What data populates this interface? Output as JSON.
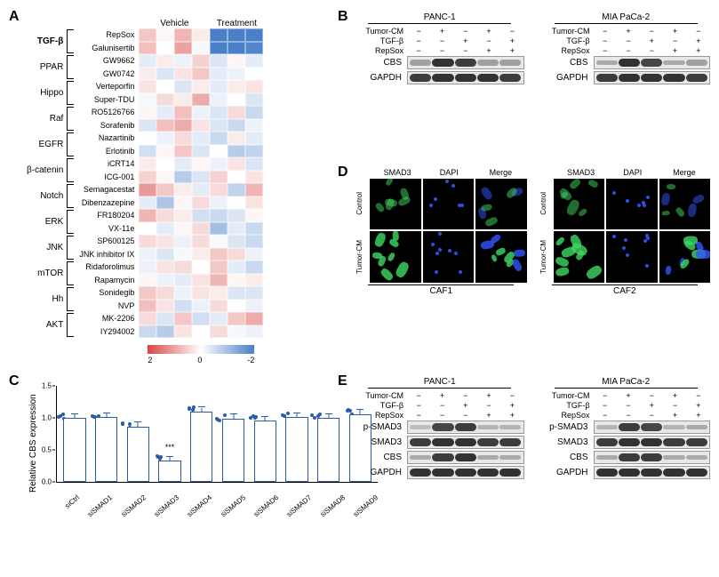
{
  "panelA": {
    "label": "A",
    "col_groups": [
      "Vehicle",
      "Treatment"
    ],
    "vehicle_cols": 4,
    "treatment_cols": 3,
    "pathways": [
      {
        "name": "TGF-β",
        "bold": true,
        "drugs": [
          "RepSox",
          "Galunisertib"
        ]
      },
      {
        "name": "PPAR",
        "bold": false,
        "drugs": [
          "GW9662",
          "GW0742"
        ]
      },
      {
        "name": "Hippo",
        "bold": false,
        "drugs": [
          "Verteporfin",
          "Super-TDU"
        ]
      },
      {
        "name": "Raf",
        "bold": false,
        "drugs": [
          "RO5126766",
          "Sorafenib"
        ]
      },
      {
        "name": "EGFR",
        "bold": false,
        "drugs": [
          "Nazartinib",
          "Erlotinib"
        ]
      },
      {
        "name": "β-catenin",
        "bold": false,
        "drugs": [
          "iCRT14",
          "ICG-001"
        ]
      },
      {
        "name": "Notch",
        "bold": false,
        "drugs": [
          "Semagacestat",
          "Dibenzazepine"
        ]
      },
      {
        "name": "ERK",
        "bold": false,
        "drugs": [
          "FR180204",
          "VX-11e"
        ]
      },
      {
        "name": "JNK",
        "bold": false,
        "drugs": [
          "SP600125",
          "JNK inhibitor IX"
        ]
      },
      {
        "name": "mTOR",
        "bold": false,
        "drugs": [
          "Ridaforolimus",
          "Rapamycin"
        ]
      },
      {
        "name": "Hh",
        "bold": false,
        "drugs": [
          "Sonidegib",
          "NVP"
        ]
      },
      {
        "name": "AKT",
        "bold": false,
        "drugs": [
          "MK-2206",
          "IY294002"
        ]
      }
    ],
    "heat_values": [
      [
        0.6,
        0.1,
        0.8,
        0.2,
        -2.4,
        -2.6,
        -2.0
      ],
      [
        0.7,
        0.0,
        1.0,
        -0.1,
        -2.3,
        -2.5,
        -1.9
      ],
      [
        -0.3,
        0.2,
        -0.2,
        0.5,
        -0.4,
        0.1,
        -0.3
      ],
      [
        0.2,
        -0.4,
        0.3,
        0.6,
        -0.3,
        -0.2,
        0.0
      ],
      [
        0.3,
        0.0,
        -0.4,
        0.2,
        -0.3,
        0.2,
        0.3
      ],
      [
        -0.1,
        0.4,
        0.2,
        0.9,
        -0.2,
        0.0,
        -0.4
      ],
      [
        0.1,
        -0.3,
        0.7,
        -0.2,
        -0.4,
        0.4,
        -0.6
      ],
      [
        -0.4,
        0.7,
        0.9,
        0.3,
        -0.4,
        -0.6,
        -0.2
      ],
      [
        0.0,
        -0.2,
        0.4,
        -0.3,
        -0.6,
        0.2,
        -0.3
      ],
      [
        -0.5,
        0.1,
        0.6,
        -0.4,
        0.0,
        -0.8,
        -0.7
      ],
      [
        0.2,
        0.0,
        -0.3,
        0.1,
        -0.2,
        0.3,
        -0.4
      ],
      [
        0.5,
        0.1,
        -0.8,
        -0.4,
        0.5,
        0.0,
        0.3
      ],
      [
        1.1,
        0.6,
        0.2,
        -0.3,
        0.4,
        -0.7,
        0.8
      ],
      [
        -0.3,
        -0.9,
        0.1,
        0.4,
        -0.2,
        0.0,
        0.3
      ],
      [
        0.8,
        0.4,
        0.2,
        -0.5,
        -0.6,
        -0.4,
        0.1
      ],
      [
        0.0,
        -0.3,
        0.1,
        0.4,
        -1.0,
        -0.3,
        -0.6
      ],
      [
        0.4,
        0.3,
        -0.2,
        0.4,
        -0.1,
        -0.4,
        -0.6
      ],
      [
        -0.2,
        -0.4,
        -0.1,
        0.2,
        0.6,
        0.4,
        -0.2
      ],
      [
        -0.2,
        0.3,
        0.4,
        0.0,
        0.6,
        -0.3,
        -0.6
      ],
      [
        0.1,
        -0.2,
        -0.3,
        0.3,
        0.8,
        0.1,
        0.2
      ],
      [
        0.6,
        0.4,
        -0.2,
        0.3,
        0.2,
        -0.4,
        -0.4
      ],
      [
        0.7,
        0.3,
        -0.5,
        -0.2,
        0.4,
        0.0,
        -0.2
      ],
      [
        0.4,
        -0.4,
        0.6,
        -0.5,
        -0.3,
        0.6,
        0.9
      ],
      [
        -0.6,
        -0.8,
        0.3,
        0.0,
        0.4,
        -0.1,
        -0.2
      ]
    ],
    "scale": {
      "min": -2,
      "mid": 0,
      "max": 2,
      "neg_color": "#4a7fc9",
      "mid_color": "#ffffff",
      "pos_color": "#d94545"
    }
  },
  "panelB": {
    "label": "B",
    "blocks": [
      {
        "title": "PANC-1",
        "treatments": [
          "Tumor-CM",
          "TGF-β",
          "RepSox"
        ],
        "treat_matrix": [
          [
            "−",
            "+",
            "−",
            "+",
            "−"
          ],
          [
            "−",
            "−",
            "+",
            "−",
            "+"
          ],
          [
            "−",
            "−",
            "−",
            "+",
            "+"
          ]
        ],
        "rows": [
          {
            "label": "CBS",
            "intensities": [
              0.35,
              0.9,
              0.85,
              0.35,
              0.35
            ]
          },
          {
            "label": "GAPDH",
            "intensities": [
              0.85,
              0.9,
              0.9,
              0.9,
              0.85
            ]
          }
        ]
      },
      {
        "title": "MIA PaCa-2",
        "treatments": [
          "Tumor-CM",
          "TGF-β",
          "RepSox"
        ],
        "treat_matrix": [
          [
            "−",
            "+",
            "−",
            "+",
            "−"
          ],
          [
            "−",
            "−",
            "+",
            "−",
            "+"
          ],
          [
            "−",
            "−",
            "−",
            "+",
            "+"
          ]
        ],
        "rows": [
          {
            "label": "CBS",
            "intensities": [
              0.3,
              0.9,
              0.8,
              0.3,
              0.35
            ]
          },
          {
            "label": "GAPDH",
            "intensities": [
              0.85,
              0.9,
              0.9,
              0.9,
              0.85
            ]
          }
        ]
      }
    ]
  },
  "panelC": {
    "label": "C",
    "y_label": "Relative CBS expression",
    "y_max": 1.5,
    "y_step": 0.5,
    "accent": "#2a5ca8",
    "bars": [
      {
        "label": "siCtrl",
        "mean": 1.0,
        "err": 0.06,
        "sig": ""
      },
      {
        "label": "siSMAD1",
        "mean": 1.02,
        "err": 0.05,
        "sig": ""
      },
      {
        "label": "siSMAD2",
        "mean": 0.86,
        "err": 0.07,
        "sig": ""
      },
      {
        "label": "siSMAD3",
        "mean": 0.34,
        "err": 0.05,
        "sig": "***"
      },
      {
        "label": "siSMAD4",
        "mean": 1.1,
        "err": 0.06,
        "sig": ""
      },
      {
        "label": "siSMAD5",
        "mean": 0.98,
        "err": 0.08,
        "sig": ""
      },
      {
        "label": "siSMAD6",
        "mean": 0.96,
        "err": 0.06,
        "sig": ""
      },
      {
        "label": "siSMAD7",
        "mean": 1.02,
        "err": 0.05,
        "sig": ""
      },
      {
        "label": "siSMAD8",
        "mean": 1.0,
        "err": 0.06,
        "sig": ""
      },
      {
        "label": "siSMAD9",
        "mean": 1.06,
        "err": 0.06,
        "sig": ""
      }
    ]
  },
  "panelD": {
    "label": "D",
    "channels": [
      "SMAD3",
      "DAPI",
      "Merge"
    ],
    "rows": [
      "Control",
      "Tumor-CM"
    ],
    "blocks": [
      "CAF1",
      "CAF2"
    ],
    "colors": {
      "smad3": "#3fd964",
      "dapi": "#3355ff"
    }
  },
  "panelE": {
    "label": "E",
    "blocks": [
      {
        "title": "PANC-1",
        "treatments": [
          "Tumor-CM",
          "TGF-β",
          "RepSox"
        ],
        "treat_matrix": [
          [
            "−",
            "+",
            "−",
            "+",
            "−"
          ],
          [
            "−",
            "−",
            "+",
            "−",
            "+"
          ],
          [
            "−",
            "−",
            "−",
            "+",
            "+"
          ]
        ],
        "rows": [
          {
            "label": "p-SMAD3",
            "intensities": [
              0.2,
              0.8,
              0.85,
              0.25,
              0.25
            ]
          },
          {
            "label": "SMAD3",
            "intensities": [
              0.85,
              0.9,
              0.9,
              0.85,
              0.85
            ]
          },
          {
            "label": "CBS",
            "intensities": [
              0.3,
              0.85,
              0.9,
              0.3,
              0.3
            ]
          },
          {
            "label": "GAPDH",
            "intensities": [
              0.9,
              0.9,
              0.9,
              0.9,
              0.9
            ]
          }
        ]
      },
      {
        "title": "MIA PaCa-2",
        "treatments": [
          "Tumor-CM",
          "TGF-β",
          "RepSox"
        ],
        "treat_matrix": [
          [
            "−",
            "+",
            "−",
            "+",
            "−"
          ],
          [
            "−",
            "−",
            "+",
            "−",
            "+"
          ],
          [
            "−",
            "−",
            "−",
            "+",
            "+"
          ]
        ],
        "rows": [
          {
            "label": "p-SMAD3",
            "intensities": [
              0.25,
              0.85,
              0.8,
              0.25,
              0.3
            ]
          },
          {
            "label": "SMAD3",
            "intensities": [
              0.85,
              0.9,
              0.9,
              0.85,
              0.85
            ]
          },
          {
            "label": "CBS",
            "intensities": [
              0.3,
              0.85,
              0.85,
              0.3,
              0.3
            ]
          },
          {
            "label": "GAPDH",
            "intensities": [
              0.9,
              0.9,
              0.9,
              0.9,
              0.9
            ]
          }
        ]
      }
    ]
  }
}
